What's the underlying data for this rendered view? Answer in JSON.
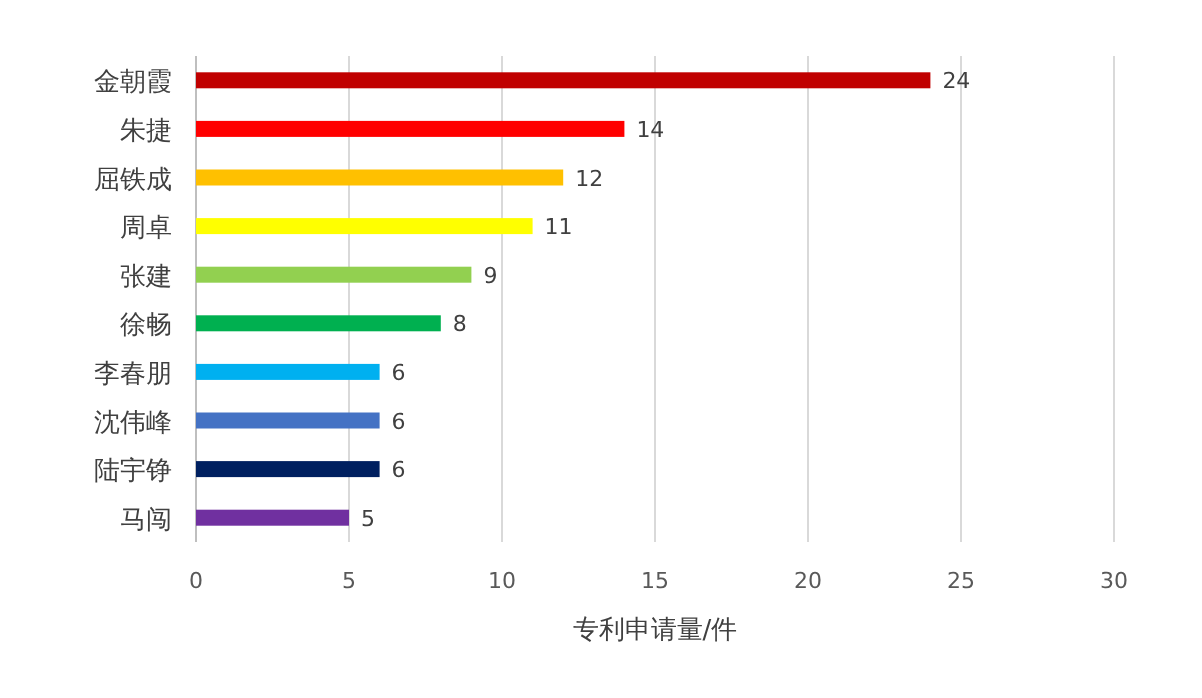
{
  "chart_data": {
    "type": "bar",
    "orientation": "horizontal",
    "categories": [
      "金朝霞",
      "朱捷",
      "屈铁成",
      "周卓",
      "张建",
      "徐畅",
      "李春朋",
      "沈伟峰",
      "陆宇铮",
      "马闯"
    ],
    "values": [
      24,
      14,
      12,
      11,
      9,
      8,
      6,
      6,
      6,
      5
    ],
    "colors": [
      "#c00000",
      "#ff0000",
      "#ffc000",
      "#ffff00",
      "#92d050",
      "#00b050",
      "#00b0f0",
      "#4472c4",
      "#002060",
      "#7030a0"
    ],
    "xlabel": "专利申请量/件",
    "xlim": [
      0,
      30
    ],
    "xticks": [
      0,
      5,
      10,
      15,
      20,
      25,
      30
    ],
    "grid": "x",
    "data_labels": true
  }
}
